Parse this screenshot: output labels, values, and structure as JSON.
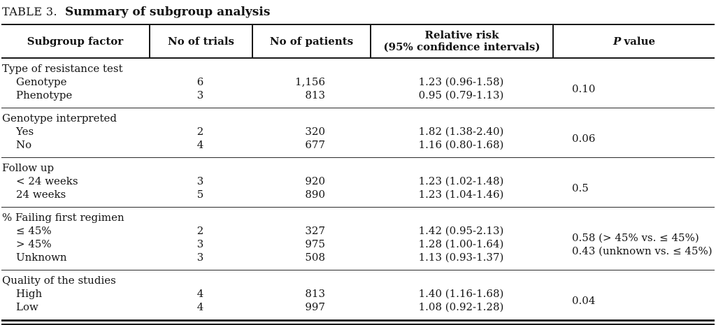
{
  "title": {
    "label": "TABLE 3.",
    "text": "Summary of subgroup analysis"
  },
  "table": {
    "headers": {
      "factor": "Subgroup factor",
      "trials": "No of trials",
      "patients": "No of patients",
      "rr_line1": "Relative risk",
      "rr_line2": "(95% confidence intervals)",
      "p_italic": "P",
      "p_rest": "value"
    },
    "sections": [
      {
        "factor": "Type of resistance test",
        "rows": [
          {
            "label": "Genotype",
            "trials": "6",
            "patients": "1,156",
            "rr": "1.23 (0.96-1.58)"
          },
          {
            "label": "Phenotype",
            "trials": "3",
            "patients": "813",
            "rr": "0.95 (0.79-1.13)"
          }
        ],
        "p_values": [
          "0.10"
        ]
      },
      {
        "factor": "Genotype interpreted",
        "rows": [
          {
            "label": "Yes",
            "trials": "2",
            "patients": "320",
            "rr": "1.82 (1.38-2.40)"
          },
          {
            "label": "No",
            "trials": "4",
            "patients": "677",
            "rr": "1.16 (0.80-1.68)"
          }
        ],
        "p_values": [
          "0.06"
        ]
      },
      {
        "factor": "Follow up",
        "rows": [
          {
            "label": "< 24 weeks",
            "trials": "3",
            "patients": "920",
            "rr": "1.23 (1.02-1.48)"
          },
          {
            "label": "24 weeks",
            "trials": "5",
            "patients": "890",
            "rr": "1.23 (1.04-1.46)"
          }
        ],
        "p_values": [
          "0.5"
        ]
      },
      {
        "factor": "% Failing first regimen",
        "rows": [
          {
            "label": "≤ 45%",
            "trials": "2",
            "patients": "327",
            "rr": "1.42 (0.95-2.13)"
          },
          {
            "label": "> 45%",
            "trials": "3",
            "patients": "975",
            "rr": "1.28 (1.00-1.64)"
          },
          {
            "label": "Unknown",
            "trials": "3",
            "patients": "508",
            "rr": "1.13 (0.93-1.37)"
          }
        ],
        "p_values": [
          "0.58 (> 45% vs. ≤ 45%)",
          "0.43 (unknown vs. ≤ 45%)"
        ]
      },
      {
        "factor": "Quality of the studies",
        "rows": [
          {
            "label": "High",
            "trials": "4",
            "patients": "813",
            "rr": "1.40 (1.16-1.68)"
          },
          {
            "label": "Low",
            "trials": "4",
            "patients": "997",
            "rr": "1.08 (0.92-1.28)"
          }
        ],
        "p_values": [
          "0.04"
        ]
      }
    ]
  },
  "colors": {
    "text": "#121212",
    "rule": "#1a1a1a",
    "background": "#ffffff"
  }
}
